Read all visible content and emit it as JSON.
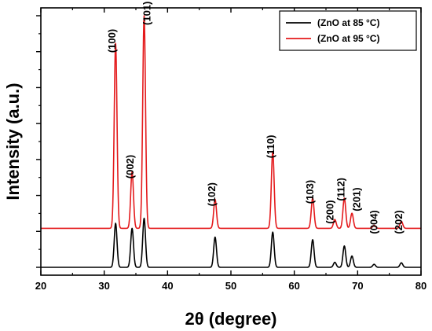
{
  "chart_data": {
    "type": "line",
    "xlabel": "2θ (degree)",
    "ylabel": "Intensity (a.u.)",
    "xlim": [
      20,
      80
    ],
    "xticks": [
      20,
      30,
      40,
      50,
      60,
      70,
      80
    ],
    "ylim": [
      0,
      1.0
    ],
    "grid": false,
    "legend_position": "top-right",
    "series": [
      {
        "name": "(ZnO at 85 °C)",
        "color": "#000000",
        "baseline": 0.0,
        "peaks": [
          {
            "x": 31.8,
            "h": 0.175
          },
          {
            "x": 34.4,
            "h": 0.155
          },
          {
            "x": 36.3,
            "h": 0.195
          },
          {
            "x": 47.5,
            "h": 0.12
          },
          {
            "x": 56.6,
            "h": 0.14
          },
          {
            "x": 62.9,
            "h": 0.11
          },
          {
            "x": 66.4,
            "h": 0.02
          },
          {
            "x": 67.9,
            "h": 0.085
          },
          {
            "x": 69.1,
            "h": 0.045
          },
          {
            "x": 72.6,
            "h": 0.012
          },
          {
            "x": 76.9,
            "h": 0.018
          }
        ]
      },
      {
        "name": "(ZnO at 95 °C)",
        "color": "#e41a1c",
        "baseline": 0.155,
        "peaks": [
          {
            "x": 31.8,
            "h": 0.735
          },
          {
            "x": 34.4,
            "h": 0.225
          },
          {
            "x": 36.3,
            "h": 0.845
          },
          {
            "x": 47.5,
            "h": 0.115
          },
          {
            "x": 56.6,
            "h": 0.305
          },
          {
            "x": 62.9,
            "h": 0.12
          },
          {
            "x": 66.4,
            "h": 0.035
          },
          {
            "x": 67.9,
            "h": 0.12
          },
          {
            "x": 69.1,
            "h": 0.06
          },
          {
            "x": 72.6,
            "h": 0.012
          },
          {
            "x": 76.9,
            "h": 0.028
          }
        ]
      }
    ],
    "annotations": [
      {
        "text": "(100)",
        "x": 31.8,
        "y": 0.9
      },
      {
        "text": "(002)",
        "x": 34.6,
        "y": 0.4
      },
      {
        "text": "(101)",
        "x": 37.3,
        "y": 1.01
      },
      {
        "text": "(102)",
        "x": 47.5,
        "y": 0.29
      },
      {
        "text": "(110)",
        "x": 56.8,
        "y": 0.48
      },
      {
        "text": "(103)",
        "x": 63.0,
        "y": 0.3
      },
      {
        "text": "(200)",
        "x": 66.2,
        "y": 0.22
      },
      {
        "text": "(112)",
        "x": 67.9,
        "y": 0.31
      },
      {
        "text": "(201)",
        "x": 70.4,
        "y": 0.27
      },
      {
        "text": "(004)",
        "x": 73.1,
        "y": 0.18
      },
      {
        "text": "(202)",
        "x": 77.0,
        "y": 0.18
      }
    ]
  }
}
